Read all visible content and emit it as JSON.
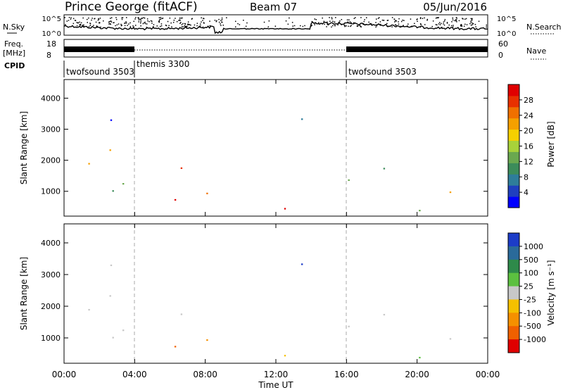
{
  "header": {
    "title": "Prince George (fitACF)",
    "beam": "Beam 07",
    "date": "05/Jun/2016"
  },
  "nsky_panel": {
    "left_label": "N.Sky",
    "right_label": "N.Search",
    "left_ticks": [
      "10^5",
      "10^0"
    ],
    "right_ticks": [
      "10^5",
      "10^0"
    ]
  },
  "freq_panel": {
    "left_label": "Freq.",
    "left_unit": "[MHz]",
    "right_label": "Nave",
    "left_ticks": [
      "18",
      "8"
    ],
    "right_ticks": [
      "60",
      "0"
    ]
  },
  "cpid": {
    "label": "CPID",
    "segments": [
      {
        "name": "twofsound 3503",
        "start_hour": 0,
        "end_hour": 4
      },
      {
        "name": "themis 3300",
        "start_hour": 4,
        "end_hour": 16
      },
      {
        "name": "twofsound 3503",
        "start_hour": 16,
        "end_hour": 24
      }
    ]
  },
  "colors": {
    "power": [
      "#0000ff",
      "#1f3fbf",
      "#2e7d9a",
      "#3c8c5a",
      "#6aa84f",
      "#a8d23a",
      "#f5d000",
      "#f5a000",
      "#f07000",
      "#e83000",
      "#e00000"
    ],
    "velocity_pos": [
      "#1c3cc8",
      "#2a6a9a",
      "#2e8a4a",
      "#5cc040"
    ],
    "velocity_zero": "#c8c8c8",
    "velocity_neg": [
      "#f5c000",
      "#f59000",
      "#f06000",
      "#e00000"
    ]
  },
  "chart_data": [
    {
      "type": "heatmap",
      "name": "power",
      "ylabel": "Slant Range [km]",
      "ylim": [
        200,
        4600
      ],
      "yticks": [
        1000,
        2000,
        3000,
        4000
      ],
      "xlim": [
        0,
        24
      ],
      "xticks": [
        0,
        4,
        8,
        12,
        16,
        20,
        24
      ],
      "colorbar": {
        "label": "Power [dB]",
        "range": [
          0,
          32
        ],
        "ticks": [
          4,
          8,
          12,
          16,
          20,
          24,
          28
        ]
      }
    },
    {
      "type": "heatmap",
      "name": "velocity",
      "ylabel": "Slant Range [km]",
      "ylim": [
        200,
        4600
      ],
      "yticks": [
        1000,
        2000,
        3000,
        4000
      ],
      "xlim": [
        0,
        24
      ],
      "xticks": [
        0,
        4,
        8,
        12,
        16,
        20,
        24
      ],
      "xticklabels": [
        "00:00",
        "04:00",
        "08:00",
        "12:00",
        "16:00",
        "20:00",
        "00:00"
      ],
      "xlabel": "Time UT",
      "colorbar": {
        "label": "Velocity [m s⁻¹]",
        "ticks": [
          "1000",
          "500",
          "100",
          "25",
          "-25",
          "-100",
          "-500",
          "-1000"
        ]
      }
    }
  ]
}
